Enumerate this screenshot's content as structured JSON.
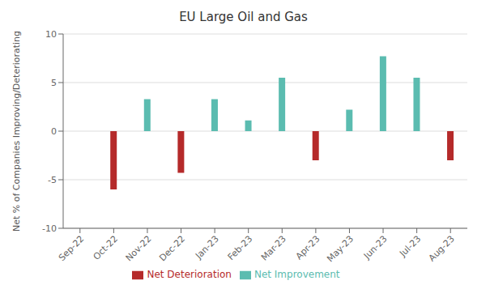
{
  "chart_data": {
    "type": "bar",
    "title": "EU Large Oil and Gas",
    "ylabel": "Net % of Companies Improving/Deteriorating",
    "categories": [
      "Sep-22",
      "Oct-22",
      "Nov-22",
      "Dec-22",
      "Jan-23",
      "Feb-23",
      "Mar-23",
      "Apr-23",
      "May-23",
      "Jun-23",
      "Jul-23",
      "Aug-23"
    ],
    "series": [
      {
        "name": "Net Deterioration",
        "color": "#b52a2a",
        "values": [
          null,
          -6.0,
          null,
          -4.3,
          null,
          null,
          null,
          -3.0,
          null,
          null,
          null,
          -3.0
        ]
      },
      {
        "name": "Net Improvement",
        "color": "#5bbcb0",
        "values": [
          0,
          null,
          3.3,
          null,
          3.3,
          1.1,
          5.5,
          null,
          2.2,
          7.7,
          5.5,
          null
        ]
      }
    ],
    "stacked": true,
    "ylim": [
      -10,
      10
    ],
    "yticks": [
      -10,
      -5,
      0,
      5,
      10
    ],
    "grid": true
  }
}
